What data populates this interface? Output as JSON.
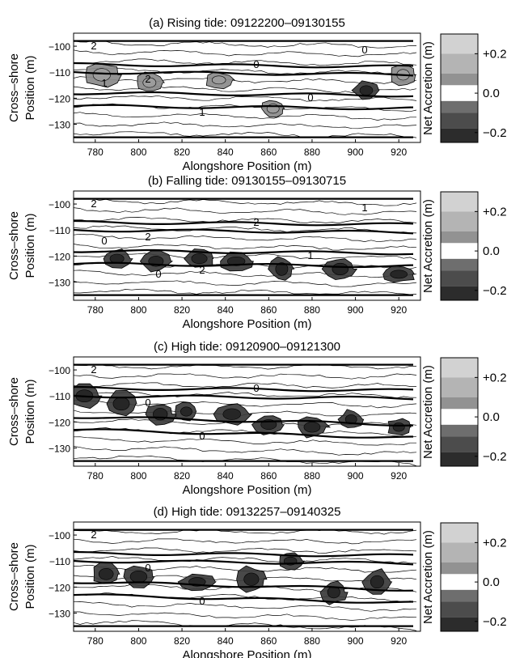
{
  "figure": {
    "xlabel": "Alongshore Position (m)",
    "ylabel_line1": "Cross–shore",
    "ylabel_line2": "Position (m)",
    "cbar_label": "Net Accretion (m)"
  },
  "chart_data": [
    {
      "type": "contour",
      "title": "(a) Rising tide: 09122200–09130155",
      "xlabel": "Alongshore Position (m)",
      "ylabel": "Cross–shore Position (m)",
      "xlim": [
        770,
        930
      ],
      "ylim": [
        -137,
        -95
      ],
      "xticks": [
        780,
        800,
        820,
        840,
        860,
        880,
        900,
        920
      ],
      "yticks": [
        -100,
        -110,
        -120,
        -130
      ],
      "xtick_labels": [
        "780",
        "800",
        "820",
        "840",
        "860",
        "880",
        "900",
        "920"
      ],
      "ytick_labels": [
        "−100",
        "−110",
        "−120",
        "−130"
      ],
      "contour_labels": [
        "2",
        "2",
        "1",
        "0",
        "0",
        "0",
        "1"
      ],
      "colorbar": {
        "ticks": [
          0.2,
          0.0,
          -0.2
        ],
        "labels": [
          "+0.2",
          "0.0",
          "−0.2"
        ],
        "range": [
          -0.25,
          0.3
        ],
        "label": "Net Accretion (m)"
      },
      "accretion_patches": [
        {
          "x": 783,
          "y": -111,
          "value": 0.15
        },
        {
          "x": 805,
          "y": -114,
          "value": 0.15
        },
        {
          "x": 837,
          "y": -113,
          "value": 0.1
        },
        {
          "x": 922,
          "y": -111,
          "value": 0.12
        },
        {
          "x": 905,
          "y": -117,
          "value": -0.05
        },
        {
          "x": 862,
          "y": -124,
          "value": 0.1
        }
      ]
    },
    {
      "type": "contour",
      "title": "(b) Falling tide: 09130155–09130715",
      "xlabel": "Alongshore Position (m)",
      "ylabel": "Cross–shore Position (m)",
      "xlim": [
        770,
        930
      ],
      "ylim": [
        -137,
        -95
      ],
      "xticks": [
        780,
        800,
        820,
        840,
        860,
        880,
        900,
        920
      ],
      "yticks": [
        -100,
        -110,
        -120,
        -130
      ],
      "xtick_labels": [
        "780",
        "800",
        "820",
        "840",
        "860",
        "880",
        "900",
        "920"
      ],
      "ytick_labels": [
        "−100",
        "−110",
        "−120",
        "−130"
      ],
      "contour_labels": [
        "2",
        "2",
        "2",
        "2",
        "1",
        "1",
        "0",
        "0"
      ],
      "colorbar": {
        "ticks": [
          0.2,
          0.0,
          -0.2
        ],
        "labels": [
          "+0.2",
          "0.0",
          "−0.2"
        ],
        "range": [
          -0.25,
          0.3
        ],
        "label": "Net Accretion (m)"
      },
      "accretion_patches": [
        {
          "x": 790,
          "y": -121,
          "value": -0.15
        },
        {
          "x": 808,
          "y": -122,
          "value": -0.15
        },
        {
          "x": 828,
          "y": -121,
          "value": -0.1
        },
        {
          "x": 845,
          "y": -122,
          "value": -0.12
        },
        {
          "x": 866,
          "y": -125,
          "value": -0.2
        },
        {
          "x": 893,
          "y": -125,
          "value": -0.2
        },
        {
          "x": 920,
          "y": -127,
          "value": -0.2
        }
      ]
    },
    {
      "type": "contour",
      "title": "(c) High tide: 09120900–09121300",
      "xlabel": "Alongshore Position (m)",
      "ylabel": "Cross–shore Position (m)",
      "xlim": [
        770,
        930
      ],
      "ylim": [
        -137,
        -95
      ],
      "xticks": [
        780,
        800,
        820,
        840,
        860,
        880,
        900,
        920
      ],
      "yticks": [
        -100,
        -110,
        -120,
        -130
      ],
      "xtick_labels": [
        "780",
        "800",
        "820",
        "840",
        "860",
        "880",
        "900",
        "920"
      ],
      "ytick_labels": [
        "−100",
        "−110",
        "−120",
        "−130"
      ],
      "contour_labels": [
        "2",
        "0",
        "0",
        "0"
      ],
      "colorbar": {
        "ticks": [
          0.2,
          0.0,
          -0.2
        ],
        "labels": [
          "+0.2",
          "0.0",
          "−0.2"
        ],
        "range": [
          -0.25,
          0.3
        ],
        "label": "Net Accretion (m)"
      },
      "accretion_patches": [
        {
          "x": 775,
          "y": -110,
          "value": -0.15
        },
        {
          "x": 792,
          "y": -113,
          "value": -0.15
        },
        {
          "x": 810,
          "y": -117,
          "value": -0.18
        },
        {
          "x": 822,
          "y": -116,
          "value": -0.18
        },
        {
          "x": 843,
          "y": -117,
          "value": -0.18
        },
        {
          "x": 860,
          "y": -121,
          "value": -0.18
        },
        {
          "x": 880,
          "y": -122,
          "value": -0.15
        },
        {
          "x": 898,
          "y": -119,
          "value": -0.18
        },
        {
          "x": 920,
          "y": -122,
          "value": -0.18
        }
      ]
    },
    {
      "type": "contour",
      "title": "(d) High tide: 09132257–09140325",
      "xlabel": "Alongshore Position (m)",
      "ylabel": "Cross–shore Position (m)",
      "xlim": [
        770,
        930
      ],
      "ylim": [
        -137,
        -95
      ],
      "xticks": [
        780,
        800,
        820,
        840,
        860,
        880,
        900,
        920
      ],
      "yticks": [
        -100,
        -110,
        -120,
        -130
      ],
      "xtick_labels": [
        "780",
        "800",
        "820",
        "840",
        "860",
        "880",
        "900",
        "920"
      ],
      "ytick_labels": [
        "−100",
        "−110",
        "−120",
        "−130"
      ],
      "contour_labels": [
        "2",
        "0",
        "0"
      ],
      "colorbar": {
        "ticks": [
          0.2,
          0.0,
          -0.2
        ],
        "labels": [
          "+0.2",
          "0.0",
          "−0.2"
        ],
        "range": [
          -0.25,
          0.3
        ],
        "label": "Net Accretion (m)"
      },
      "accretion_patches": [
        {
          "x": 785,
          "y": -115,
          "value": -0.15
        },
        {
          "x": 800,
          "y": -116,
          "value": -0.15
        },
        {
          "x": 827,
          "y": -118,
          "value": -0.18
        },
        {
          "x": 852,
          "y": -117,
          "value": -0.18
        },
        {
          "x": 870,
          "y": -110,
          "value": -0.2
        },
        {
          "x": 890,
          "y": -122,
          "value": -0.2
        },
        {
          "x": 910,
          "y": -118,
          "value": -0.15
        }
      ]
    }
  ]
}
